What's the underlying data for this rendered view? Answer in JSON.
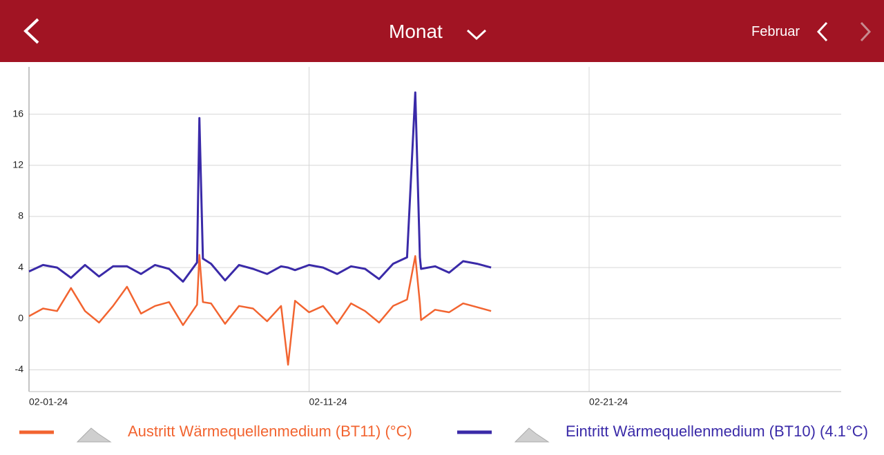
{
  "header": {
    "title": "Monat",
    "period": "Februar"
  },
  "chart_data": {
    "type": "line",
    "x": [
      "2024-02-01T00:00",
      "2024-02-01T12:00",
      "2024-02-02T00:00",
      "2024-02-02T12:00",
      "2024-02-03T00:00",
      "2024-02-03T12:00",
      "2024-02-04T00:00",
      "2024-02-04T12:00",
      "2024-02-05T00:00",
      "2024-02-05T12:00",
      "2024-02-06T00:00",
      "2024-02-06T12:00",
      "2024-02-07T00:00",
      "2024-02-07T02:00",
      "2024-02-07T05:00",
      "2024-02-07T12:00",
      "2024-02-08T00:00",
      "2024-02-08T12:00",
      "2024-02-09T00:00",
      "2024-02-09T12:00",
      "2024-02-10T00:00",
      "2024-02-10T06:00",
      "2024-02-10T12:00",
      "2024-02-11T00:00",
      "2024-02-11T12:00",
      "2024-02-12T00:00",
      "2024-02-12T12:00",
      "2024-02-13T00:00",
      "2024-02-13T12:00",
      "2024-02-14T00:00",
      "2024-02-14T12:00",
      "2024-02-14T19:00",
      "2024-02-14T23:00",
      "2024-02-15T00:00",
      "2024-02-15T12:00",
      "2024-02-16T00:00",
      "2024-02-16T12:00",
      "2024-02-17T00:00",
      "2024-02-17T12:00"
    ],
    "series": [
      {
        "name": "Austritt Wärmequellenmedium (BT11) (°C)",
        "color": "#f26430",
        "values": [
          0.2,
          0.8,
          0.6,
          2.4,
          0.6,
          -0.3,
          1.0,
          2.5,
          0.4,
          1.0,
          1.3,
          -0.5,
          1.1,
          5.0,
          1.3,
          1.2,
          -0.4,
          1.0,
          0.8,
          -0.2,
          1.0,
          -3.6,
          1.4,
          0.5,
          1.0,
          -0.4,
          1.2,
          0.6,
          -0.3,
          1.0,
          1.5,
          4.9,
          1.2,
          -0.1,
          0.7,
          0.5,
          1.2,
          0.9,
          0.6
        ]
      },
      {
        "name": "Eintritt Wärmequellenmedium (BT10) (4.1°C)",
        "color": "#3a2aa8",
        "values": [
          3.7,
          4.2,
          4.0,
          3.2,
          4.2,
          3.3,
          4.1,
          4.1,
          3.5,
          4.2,
          3.9,
          2.9,
          4.4,
          15.7,
          4.7,
          4.3,
          3.0,
          4.2,
          3.9,
          3.5,
          4.1,
          4.0,
          3.8,
          4.2,
          4.0,
          3.5,
          4.1,
          3.9,
          3.1,
          4.3,
          4.8,
          17.7,
          4.8,
          3.9,
          4.1,
          3.6,
          4.5,
          4.3,
          4.0
        ]
      }
    ],
    "xlim": [
      "2024-02-01T00:00",
      "2024-03-01T00:00"
    ],
    "xticks": [
      {
        "value": "2024-02-01T00:00",
        "label": "02-01-24"
      },
      {
        "value": "2024-02-11T00:00",
        "label": "02-11-24"
      },
      {
        "value": "2024-02-21T00:00",
        "label": "02-21-24"
      }
    ],
    "ylim": [
      -5.7,
      19.7
    ],
    "yticks": [
      -4,
      0,
      4,
      8,
      12,
      16
    ],
    "grid": true
  }
}
